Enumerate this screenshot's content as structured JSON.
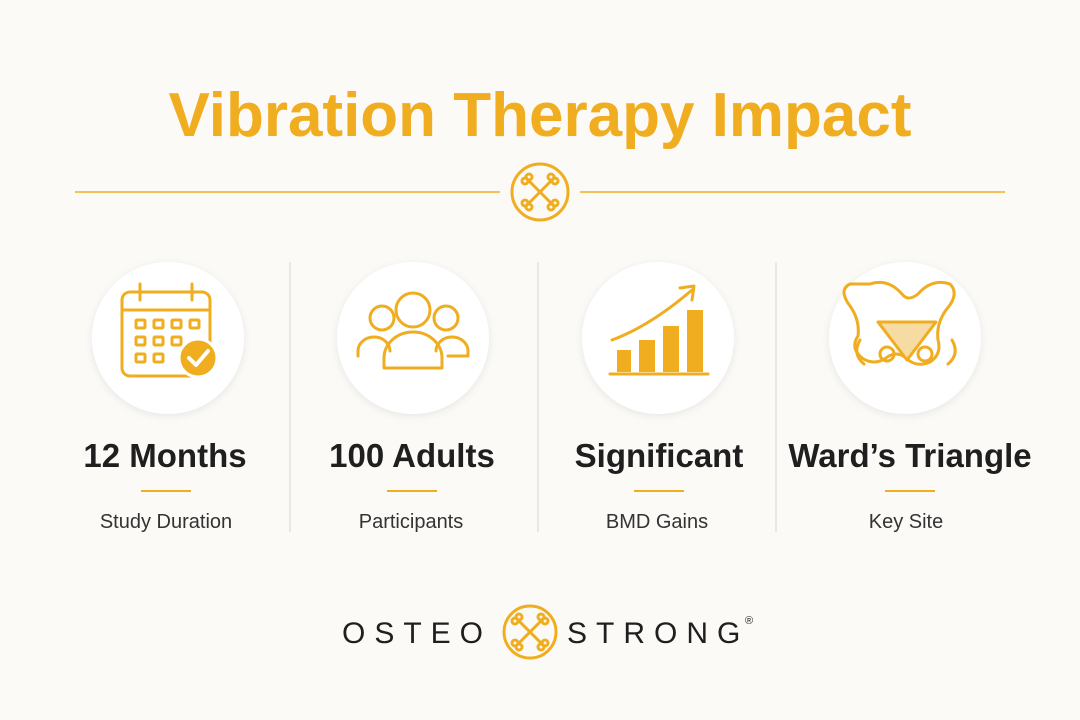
{
  "header": {
    "title": "Vibration Therapy Impact"
  },
  "stats": [
    {
      "value": "12 Months",
      "label": "Study Duration"
    },
    {
      "value": "100 Adults",
      "label": "Participants"
    },
    {
      "value": "Significant",
      "label": "BMD Gains"
    },
    {
      "value": "Ward’s Triangle",
      "label": "Key Site"
    }
  ],
  "brand": {
    "left": "OSTEO",
    "right": "STRONG",
    "mark": "®"
  }
}
